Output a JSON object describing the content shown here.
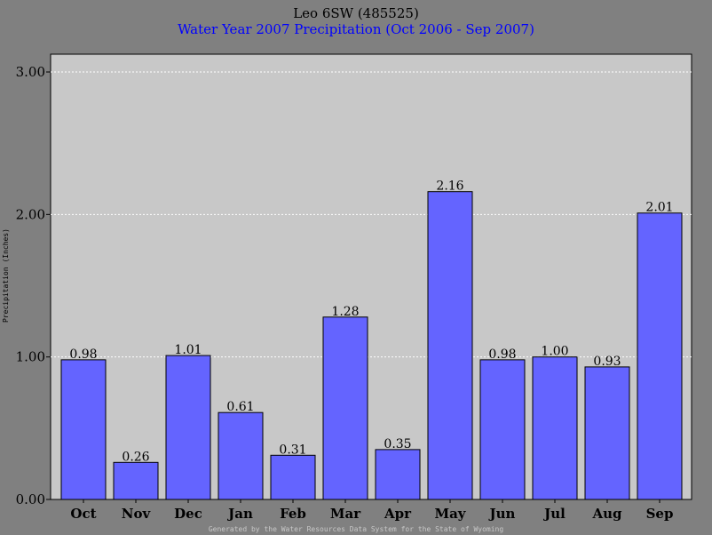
{
  "chart_data": {
    "type": "bar",
    "title": "Leo 6SW (485525)",
    "subtitle": "Water Year 2007 Precipitation (Oct 2006 - Sep 2007)",
    "ylabel": "Precipitation (Inches)",
    "xlabel": "",
    "categories": [
      "Oct",
      "Nov",
      "Dec",
      "Jan",
      "Feb",
      "Mar",
      "Apr",
      "May",
      "Jun",
      "Jul",
      "Aug",
      "Sep"
    ],
    "values": [
      0.98,
      0.26,
      1.01,
      0.61,
      0.31,
      1.28,
      0.35,
      2.16,
      0.98,
      1.0,
      0.93,
      2.01
    ],
    "value_labels": [
      "0.98",
      "0.26",
      "1.01",
      "0.61",
      "0.31",
      "1.28",
      "0.35",
      "2.16",
      "0.98",
      "1.00",
      "0.93",
      "2.01"
    ],
    "ylim": [
      0,
      3.0
    ],
    "yticks": [
      0,
      1,
      2,
      3
    ],
    "ytick_labels": [
      "0.00",
      "1.00",
      "2.00",
      "3.00"
    ],
    "grid": true,
    "legend": "none",
    "footer": "Generated by the Water Resources Data System for the State of Wyoming"
  },
  "colors": {
    "background": "#808080",
    "plot_area": "#c8c8c8",
    "bar_fill": "#6464ff",
    "bar_stroke": "#000000",
    "subtitle": "#0000ff",
    "grid": "#ffffff",
    "footer": "#c8c8c8"
  }
}
